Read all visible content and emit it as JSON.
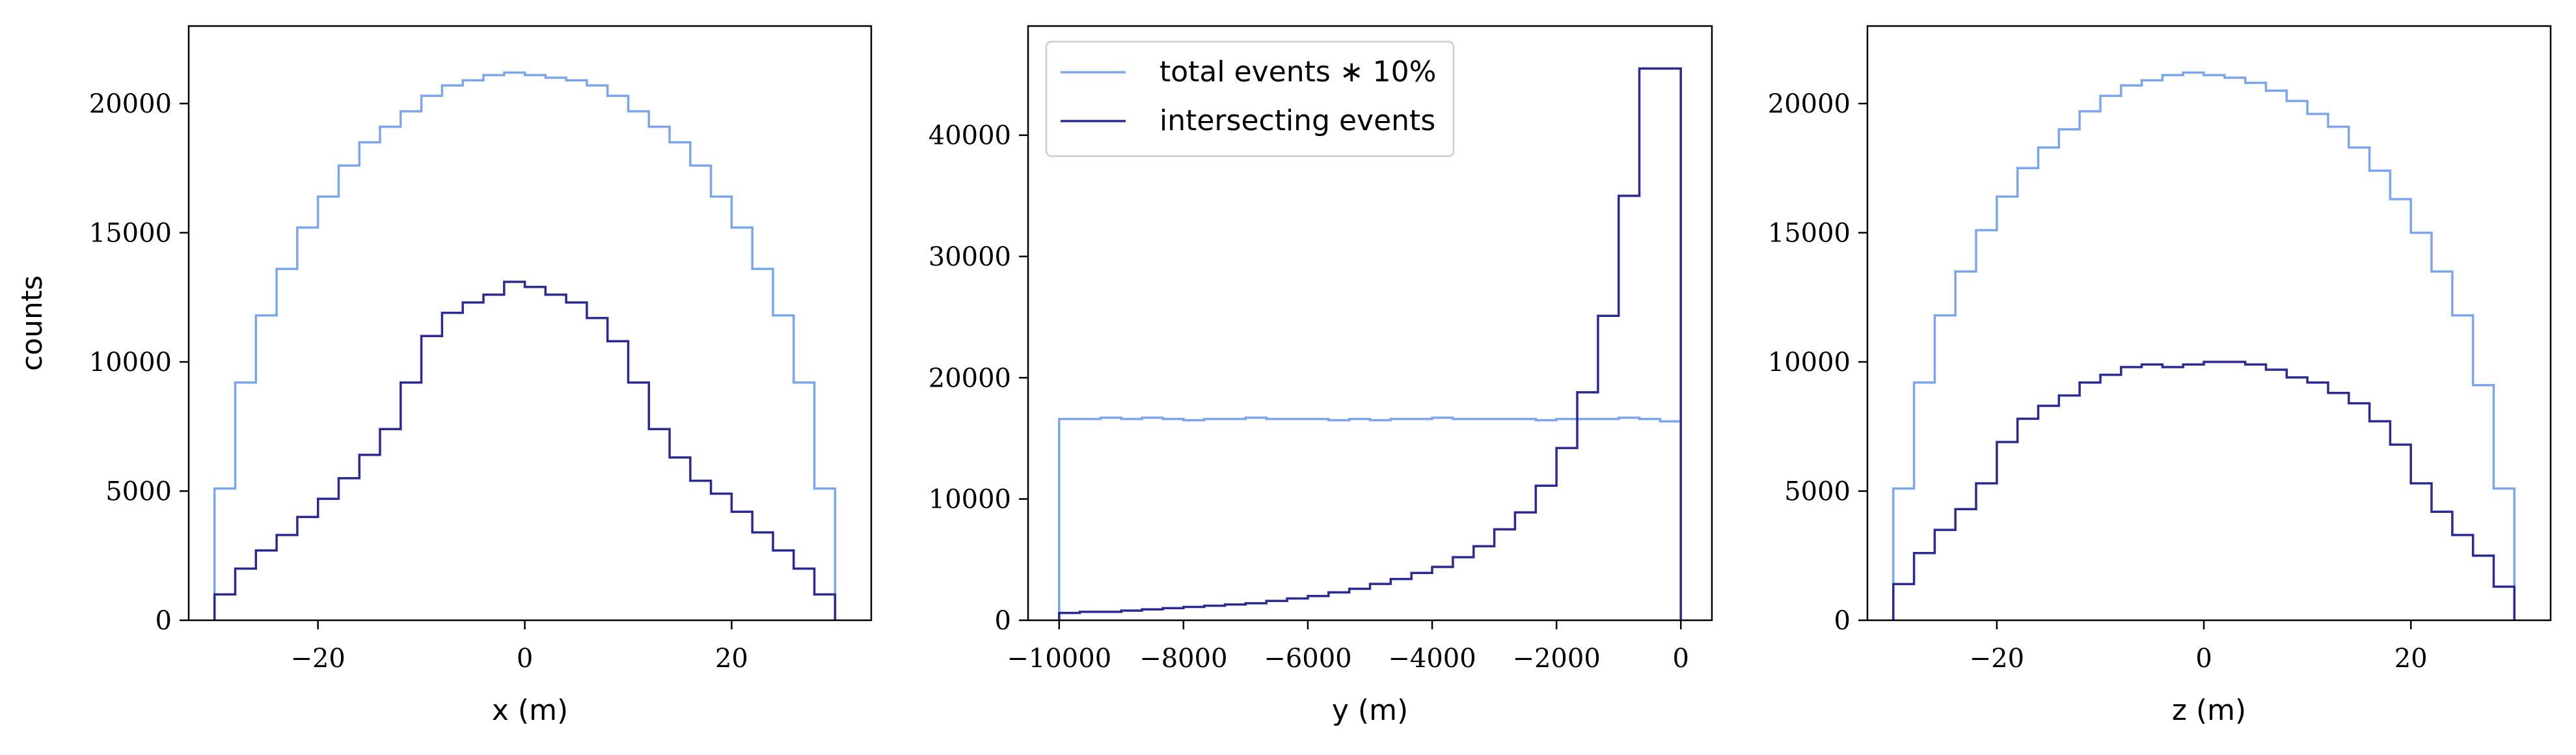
{
  "figure": {
    "colors": {
      "total": "#7ba6ee",
      "intersecting": "#2b2a93",
      "frame": "#000000",
      "background": "#ffffff"
    }
  },
  "legend": {
    "total_label": "total events ∗ 10%",
    "intersecting_label": "intersecting events"
  },
  "chart_data": [
    {
      "type": "bar",
      "style": "step-histogram",
      "xlabel": "x (m)",
      "ylabel": "counts",
      "xlim": [
        -32.5,
        33.5
      ],
      "ylim": [
        0,
        23000
      ],
      "xticks": [
        -20,
        0,
        20
      ],
      "xtick_labels": [
        "−20",
        "0",
        "20"
      ],
      "yticks": [
        0,
        5000,
        10000,
        15000,
        20000
      ],
      "ytick_labels": [
        "0",
        "5000",
        "10000",
        "15000",
        "20000"
      ],
      "bin_edges": [
        -30,
        -28,
        -26,
        -24,
        -22,
        -20,
        -18,
        -16,
        -14,
        -12,
        -10,
        -8,
        -6,
        -4,
        -2,
        0,
        2,
        4,
        6,
        8,
        10,
        12,
        14,
        16,
        18,
        20,
        22,
        24,
        26,
        28,
        30
      ],
      "series": [
        {
          "name": "total events ∗ 10%",
          "key": "total",
          "values": [
            5100,
            9200,
            11800,
            13600,
            15200,
            16400,
            17600,
            18500,
            19100,
            19700,
            20300,
            20700,
            20900,
            21100,
            21200,
            21100,
            21000,
            20900,
            20700,
            20300,
            19700,
            19100,
            18500,
            17600,
            16400,
            15200,
            13600,
            11800,
            9200,
            5100
          ]
        },
        {
          "name": "intersecting events",
          "key": "intersecting",
          "values": [
            1000,
            2000,
            2700,
            3300,
            4000,
            4700,
            5500,
            6400,
            7400,
            9200,
            11000,
            11900,
            12300,
            12600,
            13100,
            12900,
            12600,
            12300,
            11700,
            10800,
            9200,
            7400,
            6300,
            5400,
            4900,
            4200,
            3400,
            2700,
            2000,
            1000
          ]
        }
      ]
    },
    {
      "type": "bar",
      "style": "step-histogram",
      "xlabel": "y (m)",
      "ylabel": "",
      "xlim": [
        -10500,
        500
      ],
      "ylim": [
        0,
        49000
      ],
      "xticks": [
        -10000,
        -8000,
        -6000,
        -4000,
        -2000,
        0
      ],
      "xtick_labels": [
        "−10000",
        "−8000",
        "−6000",
        "−4000",
        "−2000",
        "0"
      ],
      "yticks": [
        0,
        10000,
        20000,
        30000,
        40000
      ],
      "ytick_labels": [
        "0",
        "10000",
        "20000",
        "30000",
        "40000"
      ],
      "legend_location": "upper-left",
      "bin_edges": [
        -10000,
        -9667,
        -9333,
        -9000,
        -8667,
        -8333,
        -8000,
        -7667,
        -7333,
        -7000,
        -6667,
        -6333,
        -6000,
        -5667,
        -5333,
        -5000,
        -4667,
        -4333,
        -4000,
        -3667,
        -3333,
        -3000,
        -2667,
        -2333,
        -2000,
        -1667,
        -1333,
        -1000,
        -667,
        -333,
        0
      ],
      "series": [
        {
          "name": "total events ∗ 10%",
          "key": "total",
          "values": [
            16600,
            16600,
            16700,
            16600,
            16700,
            16600,
            16500,
            16600,
            16600,
            16700,
            16600,
            16600,
            16600,
            16500,
            16600,
            16500,
            16600,
            16600,
            16700,
            16600,
            16600,
            16600,
            16600,
            16500,
            16600,
            16600,
            16600,
            16700,
            16600,
            16400
          ]
        },
        {
          "name": "intersecting events",
          "key": "intersecting",
          "values": [
            600,
            700,
            700,
            800,
            900,
            1000,
            1100,
            1200,
            1300,
            1400,
            1600,
            1800,
            2000,
            2300,
            2600,
            3000,
            3400,
            3900,
            4400,
            5200,
            6100,
            7500,
            8900,
            11100,
            14200,
            18800,
            25100,
            35000,
            45500,
            45500
          ]
        }
      ]
    },
    {
      "type": "bar",
      "style": "step-histogram",
      "xlabel": "z (m)",
      "ylabel": "",
      "xlim": [
        -32.5,
        33.5
      ],
      "ylim": [
        0,
        23000
      ],
      "xticks": [
        -20,
        0,
        20
      ],
      "xtick_labels": [
        "−20",
        "0",
        "20"
      ],
      "yticks": [
        0,
        5000,
        10000,
        15000,
        20000
      ],
      "ytick_labels": [
        "0",
        "5000",
        "10000",
        "15000",
        "20000"
      ],
      "bin_edges": [
        -30,
        -28,
        -26,
        -24,
        -22,
        -20,
        -18,
        -16,
        -14,
        -12,
        -10,
        -8,
        -6,
        -4,
        -2,
        0,
        2,
        4,
        6,
        8,
        10,
        12,
        14,
        16,
        18,
        20,
        22,
        24,
        26,
        28,
        30
      ],
      "series": [
        {
          "name": "total events ∗ 10%",
          "key": "total",
          "values": [
            5100,
            9200,
            11800,
            13500,
            15100,
            16400,
            17500,
            18300,
            19000,
            19700,
            20300,
            20700,
            20900,
            21100,
            21200,
            21100,
            21000,
            20800,
            20500,
            20100,
            19600,
            19100,
            18300,
            17400,
            16300,
            15000,
            13500,
            11800,
            9100,
            5100
          ]
        },
        {
          "name": "intersecting events",
          "key": "intersecting",
          "values": [
            1400,
            2600,
            3500,
            4300,
            5300,
            6900,
            7800,
            8300,
            8700,
            9200,
            9500,
            9800,
            9900,
            9800,
            9900,
            10000,
            10000,
            9900,
            9700,
            9400,
            9200,
            8800,
            8400,
            7700,
            6800,
            5300,
            4200,
            3300,
            2500,
            1300
          ]
        }
      ]
    }
  ]
}
